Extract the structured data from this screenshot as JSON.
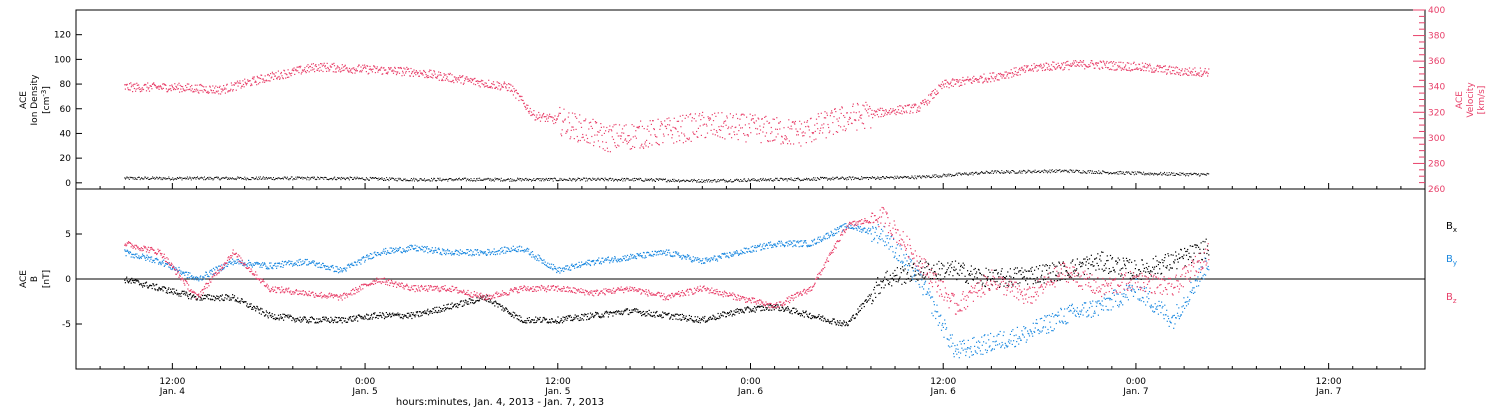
{
  "chart_data": [
    {
      "type": "scatter",
      "panel": "top",
      "ylabel_left": [
        "ACE",
        "Ion Density",
        "[cm^-3]"
      ],
      "ylabel_right": [
        "ACE",
        "Velocity",
        "[km/s]"
      ],
      "ylim_left": [
        -5,
        140
      ],
      "ylim_right": [
        260,
        400
      ],
      "yticks_left": [
        0,
        20,
        40,
        60,
        80,
        100,
        120
      ],
      "yticks_right": [
        260,
        280,
        300,
        320,
        340,
        360,
        380,
        400
      ],
      "series": [
        {
          "axis": "left",
          "color": "#000000",
          "x": [
            0,
            6,
            12,
            18,
            24,
            30,
            36,
            42,
            48,
            54,
            60,
            66,
            72,
            78,
            84,
            90
          ],
          "values": [
            4,
            4,
            4,
            4,
            3,
            3,
            3,
            3,
            2,
            3,
            4,
            5,
            9,
            10,
            8,
            7
          ]
        },
        {
          "axis": "right",
          "color": "#e8406a",
          "x": [
            0,
            4,
            8,
            12,
            16,
            20,
            24,
            28,
            32,
            34,
            36,
            40,
            44,
            48,
            52,
            56,
            60,
            64,
            66,
            68,
            72,
            76,
            80,
            84,
            88,
            90
          ],
          "values": [
            340,
            340,
            338,
            348,
            356,
            354,
            352,
            346,
            340,
            318,
            314,
            300,
            304,
            310,
            308,
            304,
            316,
            322,
            324,
            342,
            348,
            356,
            358,
            356,
            352,
            352
          ]
        }
      ]
    },
    {
      "type": "scatter",
      "panel": "bottom",
      "ylabel": [
        "ACE",
        "B",
        "[nT]"
      ],
      "ylim": [
        -10,
        10
      ],
      "yticks": [
        -5,
        0,
        5
      ],
      "legend": [
        "Bx",
        "By",
        "Bz"
      ],
      "series": [
        {
          "color": "#000000",
          "x": [
            0,
            3,
            6,
            9,
            12,
            15,
            18,
            21,
            24,
            27,
            30,
            33,
            36,
            39,
            42,
            45,
            48,
            51,
            54,
            57,
            60,
            63,
            66,
            69,
            72,
            75,
            78,
            81,
            84,
            87,
            90
          ],
          "values": [
            0,
            -1,
            -2,
            -2,
            -4,
            -4.5,
            -4.5,
            -4,
            -4,
            -3,
            -2,
            -4.5,
            -4.5,
            -4,
            -3.5,
            -4,
            -4.5,
            -3.5,
            -3,
            -4,
            -5,
            0,
            1,
            1,
            0,
            0.5,
            1,
            2,
            1,
            2,
            3.5
          ]
        },
        {
          "color": "#1a88e0",
          "x": [
            0,
            3,
            6,
            9,
            12,
            15,
            18,
            21,
            24,
            27,
            30,
            33,
            36,
            39,
            42,
            45,
            48,
            51,
            54,
            57,
            60,
            63,
            66,
            69,
            72,
            75,
            78,
            81,
            84,
            87,
            90
          ],
          "values": [
            3,
            2,
            0,
            2,
            1.5,
            2,
            1,
            3,
            3.5,
            3,
            3,
            3.5,
            1,
            2,
            2.5,
            3,
            2,
            3,
            4,
            4,
            6,
            5,
            0,
            -8,
            -7,
            -6,
            -4,
            -3,
            -1,
            -4.5,
            2
          ]
        },
        {
          "color": "#e8406a",
          "x": [
            0,
            3,
            6,
            9,
            12,
            15,
            18,
            21,
            24,
            27,
            30,
            33,
            36,
            39,
            42,
            45,
            48,
            51,
            54,
            57,
            60,
            63,
            66,
            69,
            72,
            75,
            78,
            81,
            84,
            87,
            90
          ],
          "values": [
            4,
            3,
            -2,
            3,
            -1,
            -1.5,
            -2,
            0,
            -1,
            -1,
            -2,
            -1,
            -1,
            -1.5,
            -1,
            -2,
            -1,
            -2,
            -3,
            -1,
            6,
            7,
            2,
            -3,
            0,
            -2,
            1,
            -1,
            0,
            -1,
            3
          ]
        }
      ]
    }
  ],
  "legend_labels": [
    {
      "base": "B",
      "sub": "x",
      "color": "#000000"
    },
    {
      "base": "B",
      "sub": "y",
      "color": "#1a88e0"
    },
    {
      "base": "B",
      "sub": "z",
      "color": "#e8406a"
    }
  ],
  "x_axis": {
    "range": [
      -4,
      108
    ],
    "ticks": [
      {
        "t": 4,
        "time": "12:00",
        "date": "Jan. 4"
      },
      {
        "t": 20,
        "time": "0:00",
        "date": "Jan. 5"
      },
      {
        "t": 36,
        "time": "12:00",
        "date": "Jan. 5"
      },
      {
        "t": 52,
        "time": "0:00",
        "date": "Jan. 6"
      },
      {
        "t": 68,
        "time": "12:00",
        "date": "Jan. 6"
      },
      {
        "t": 84,
        "time": "0:00",
        "date": "Jan. 7"
      },
      {
        "t": 100,
        "time": "12:00",
        "date": "Jan. 7"
      }
    ],
    "label": "hours:minutes, Jan.  4, 2013 - Jan.  7, 2013"
  }
}
